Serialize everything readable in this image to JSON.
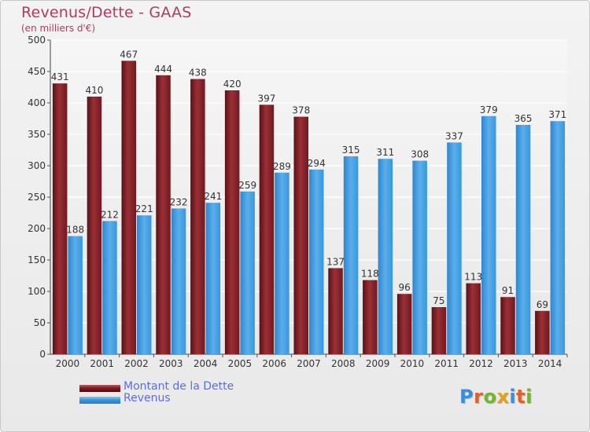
{
  "header": {
    "title": "Revenus/Dette - GAAS",
    "subtitle": "(en milliers d'€)"
  },
  "colors": {
    "dette": "#7a1f25",
    "revenus": "#3a96dc",
    "title": "#b03a63",
    "legend_text": "#5a6ee0"
  },
  "logo": {
    "text": "Proxiti",
    "letter_colors": [
      "#3b8fd6",
      "#e0622a",
      "#73b52f",
      "#e2a21d",
      "#3b8fd6",
      "#e0622a",
      "#73b52f"
    ]
  },
  "chart_data": {
    "type": "bar",
    "title": "Revenus/Dette - GAAS",
    "subtitle": "(en milliers d'€)",
    "categories": [
      "2000",
      "2001",
      "2002",
      "2003",
      "2004",
      "2005",
      "2006",
      "2007",
      "2008",
      "2009",
      "2010",
      "2011",
      "2012",
      "2013",
      "2014"
    ],
    "series": [
      {
        "name": "Montant de la Dette",
        "values": [
          431,
          410,
          467,
          444,
          438,
          420,
          397,
          378,
          137,
          118,
          96,
          75,
          113,
          91,
          69
        ]
      },
      {
        "name": "Revenus",
        "values": [
          188,
          212,
          221,
          232,
          241,
          259,
          289,
          294,
          315,
          311,
          308,
          337,
          379,
          365,
          371
        ]
      }
    ],
    "ylim": [
      0,
      500
    ],
    "yticks": [
      0,
      50,
      100,
      150,
      200,
      250,
      300,
      350,
      400,
      450,
      500
    ],
    "grid": true,
    "legend": "bottom-left",
    "xlabel": "",
    "ylabel": ""
  }
}
